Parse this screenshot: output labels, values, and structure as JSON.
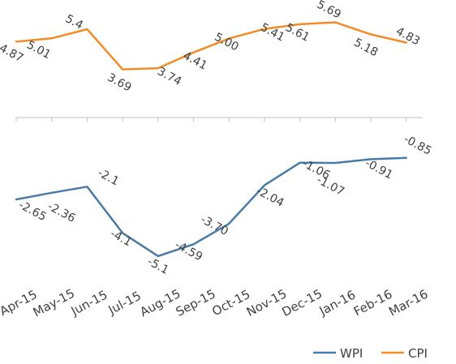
{
  "chart_data": {
    "type": "line",
    "categories": [
      "Apr-15",
      "May-15",
      "Jun-15",
      "Jul-15",
      "Aug-15",
      "Sep-15",
      "Oct-15",
      "Nov-15",
      "Dec-15",
      "Jan-16",
      "Feb-16",
      "Mar-16"
    ],
    "series": [
      {
        "name": "WPI",
        "color": "#4a7ba7",
        "values": [
          -2.65,
          -2.36,
          -2.1,
          -4.1,
          -5.1,
          -4.59,
          -3.7,
          -2.04,
          -1.06,
          -1.07,
          -0.91,
          -0.85
        ],
        "labels": [
          "-2.65",
          "-2.36",
          "-2.1",
          "-4.1",
          "-5.1",
          "-4.59",
          "-3.70",
          "-2.04",
          "-1.06",
          "-1.07",
          "-0.91",
          "-0.85"
        ]
      },
      {
        "name": "CPI",
        "color": "#f28c28",
        "values": [
          4.87,
          5.01,
          5.4,
          3.69,
          3.74,
          4.41,
          5.0,
          5.41,
          5.61,
          5.69,
          5.18,
          4.83
        ],
        "labels": [
          "4.87",
          "5.01",
          "5.4",
          "3.69",
          "3.74",
          "4.41",
          "5.00",
          "5.41",
          "5.61",
          "5.69",
          "5.18",
          "4.83"
        ]
      }
    ],
    "axis_color": "#bfbfbf",
    "legend_position": "bottom-right"
  }
}
